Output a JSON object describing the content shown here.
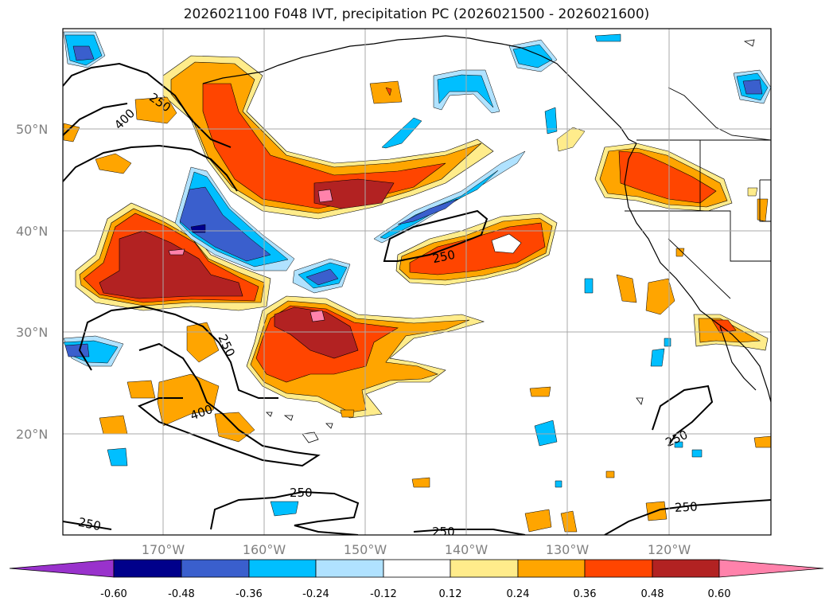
{
  "title": "2026021100 F048 IVT, precipitation PC (2026021500 - 2026021600)",
  "map": {
    "lat_labels": [
      "50°N",
      "40°N",
      "30°N",
      "20°N"
    ],
    "lon_labels": [
      "170°W",
      "160°W",
      "150°W",
      "140°W",
      "130°W",
      "120°W"
    ],
    "contour_labels": [
      "400",
      "250",
      "250",
      "400",
      "250",
      "250",
      "250",
      "250",
      "250",
      "250"
    ]
  },
  "colorbar": {
    "colors": [
      "#9932cc",
      "#00008b",
      "#3a5fcd",
      "#00bfff",
      "#b0e2ff",
      "#ffffff",
      "#ffec8b",
      "#ffa500",
      "#ff4500",
      "#b22222",
      "#ff82ab"
    ],
    "tick_labels": [
      "-0.60",
      "-0.48",
      "-0.36",
      "-0.24",
      "-0.12",
      "0.12",
      "0.24",
      "0.36",
      "0.48",
      "0.60"
    ]
  }
}
